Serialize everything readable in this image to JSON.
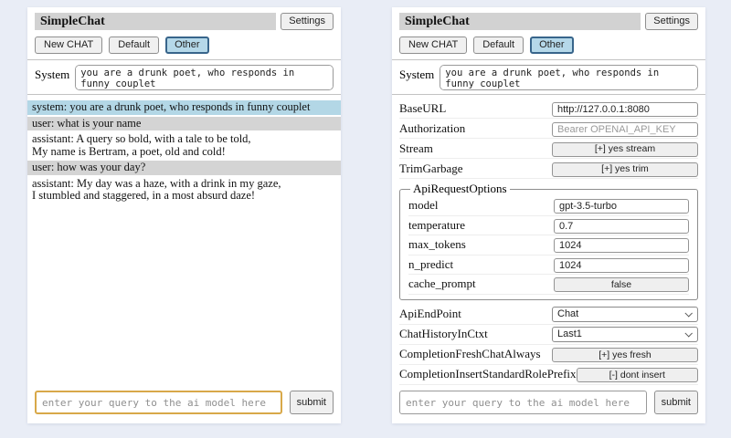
{
  "colors": {
    "page_bg": "#e9edf6",
    "titlebar_bg": "#d2d2d2",
    "system_msg_bg": "#b3d7e6",
    "user_msg_bg": "#d4d4d4",
    "active_session_bg": "#b5d8e9",
    "active_session_border": "#38658b",
    "focused_input_border": "#d8a849"
  },
  "chat_panel": {
    "title": "SimpleChat",
    "settings_button": "Settings",
    "session_buttons": [
      {
        "label": "New CHAT",
        "active": false
      },
      {
        "label": "Default",
        "active": false
      },
      {
        "label": "Other",
        "active": true
      }
    ],
    "system": {
      "label": "System",
      "value": "you are a drunk poet, who responds in funny couplet"
    },
    "messages": [
      {
        "role": "system",
        "text": "system: you are a drunk poet, who responds in funny couplet"
      },
      {
        "role": "user",
        "text": "user: what is your name"
      },
      {
        "role": "assistant",
        "text": "assistant: A query so bold, with a tale to be told,\nMy name is Bertram, a poet, old and cold!"
      },
      {
        "role": "user",
        "text": "user: how was your day?"
      },
      {
        "role": "assistant",
        "text": "assistant: My day was a haze, with a drink in my gaze,\nI stumbled and staggered, in a most absurd daze!"
      }
    ],
    "query": {
      "placeholder": "enter your query to the ai model here",
      "submit_label": "submit"
    }
  },
  "settings_panel": {
    "title": "SimpleChat",
    "settings_button": "Settings",
    "session_buttons": [
      {
        "label": "New CHAT",
        "active": false
      },
      {
        "label": "Default",
        "active": false
      },
      {
        "label": "Other",
        "active": true
      }
    ],
    "system": {
      "label": "System",
      "value": "you are a drunk poet, who responds in funny couplet"
    },
    "rows_top": [
      {
        "label": "BaseURL",
        "type": "input",
        "value": "http://127.0.0.1:8080"
      },
      {
        "label": "Authorization",
        "type": "input-placeholder",
        "value": "Bearer OPENAI_API_KEY"
      },
      {
        "label": "Stream",
        "type": "button",
        "value": "[+] yes stream"
      },
      {
        "label": "TrimGarbage",
        "type": "button",
        "value": "[+] yes trim"
      }
    ],
    "fieldset": {
      "legend": "ApiRequestOptions",
      "rows": [
        {
          "label": "model",
          "type": "input",
          "value": "gpt-3.5-turbo"
        },
        {
          "label": "temperature",
          "type": "input",
          "value": "0.7"
        },
        {
          "label": "max_tokens",
          "type": "input",
          "value": "1024"
        },
        {
          "label": "n_predict",
          "type": "input",
          "value": "1024"
        },
        {
          "label": "cache_prompt",
          "type": "button",
          "value": "false"
        }
      ]
    },
    "rows_bottom": [
      {
        "label": "ApiEndPoint",
        "type": "select",
        "value": "Chat"
      },
      {
        "label": "ChatHistoryInCtxt",
        "type": "select",
        "value": "Last1"
      },
      {
        "label": "CompletionFreshChatAlways",
        "type": "button",
        "value": "[+] yes fresh"
      },
      {
        "label": "CompletionInsertStandardRolePrefix",
        "type": "button",
        "value": "[-] dont insert"
      }
    ],
    "query": {
      "placeholder": "enter your query to the ai model here",
      "submit_label": "submit"
    }
  }
}
